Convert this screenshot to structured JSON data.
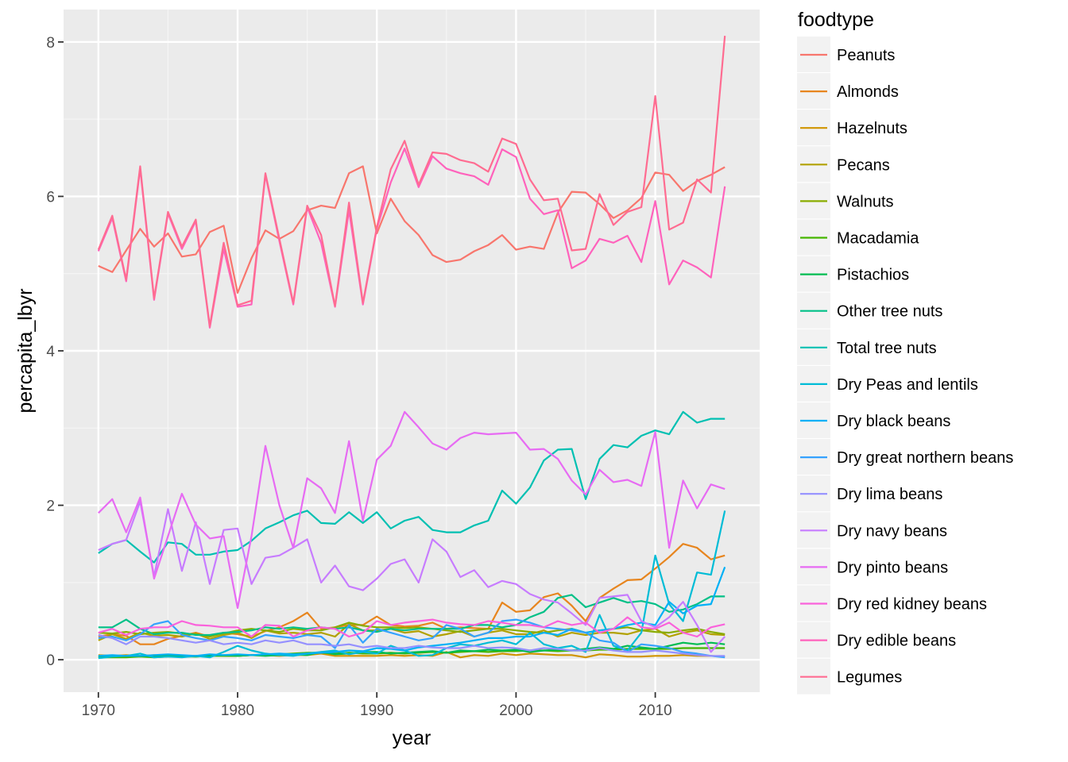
{
  "chart_data": {
    "type": "line",
    "xlabel": "year",
    "ylabel": "percapita_lbyr",
    "xlim": [
      1967.5,
      2017.5
    ],
    "ylim": [
      -0.42,
      8.42
    ],
    "x_ticks": [
      1970,
      1980,
      1990,
      2000,
      2010
    ],
    "y_ticks": [
      0,
      2,
      4,
      6,
      8
    ],
    "grid": true,
    "legend_title": "foodtype",
    "legend_position": "right",
    "x": [
      1970,
      1971,
      1972,
      1973,
      1974,
      1975,
      1976,
      1977,
      1978,
      1979,
      1980,
      1981,
      1982,
      1983,
      1984,
      1985,
      1986,
      1987,
      1988,
      1989,
      1990,
      1991,
      1992,
      1993,
      1994,
      1995,
      1996,
      1997,
      1998,
      1999,
      2000,
      2001,
      2002,
      2003,
      2004,
      2005,
      2006,
      2007,
      2008,
      2009,
      2010,
      2011,
      2012,
      2013,
      2014,
      2015
    ],
    "series": [
      {
        "name": "Peanuts",
        "color": "#F8766D",
        "values": [
          5.1,
          5.02,
          5.3,
          5.58,
          5.35,
          5.52,
          5.22,
          5.25,
          5.54,
          5.62,
          4.75,
          5.2,
          5.56,
          5.45,
          5.55,
          5.82,
          5.88,
          5.85,
          6.3,
          6.39,
          5.52,
          5.97,
          5.68,
          5.5,
          5.24,
          5.15,
          5.18,
          5.29,
          5.37,
          5.5,
          5.31,
          5.35,
          5.32,
          5.79,
          6.06,
          6.05,
          5.9,
          5.72,
          5.82,
          5.98,
          6.31,
          6.28,
          6.07,
          6.2,
          6.28,
          6.38
        ]
      },
      {
        "name": "Almonds",
        "color": "#E7851E",
        "values": [
          0.3,
          0.33,
          0.31,
          0.2,
          0.2,
          0.27,
          0.31,
          0.35,
          0.3,
          0.35,
          0.33,
          0.3,
          0.37,
          0.42,
          0.5,
          0.61,
          0.4,
          0.42,
          0.45,
          0.45,
          0.56,
          0.45,
          0.43,
          0.44,
          0.48,
          0.4,
          0.42,
          0.41,
          0.4,
          0.74,
          0.62,
          0.64,
          0.81,
          0.86,
          0.7,
          0.5,
          0.8,
          0.92,
          1.03,
          1.04,
          1.18,
          1.33,
          1.5,
          1.45,
          1.3,
          1.35
        ]
      },
      {
        "name": "Hazelnuts",
        "color": "#D09400",
        "values": [
          0.06,
          0.05,
          0.06,
          0.05,
          0.06,
          0.05,
          0.05,
          0.05,
          0.06,
          0.05,
          0.05,
          0.06,
          0.06,
          0.05,
          0.06,
          0.06,
          0.08,
          0.05,
          0.05,
          0.05,
          0.05,
          0.06,
          0.05,
          0.06,
          0.05,
          0.1,
          0.03,
          0.06,
          0.05,
          0.08,
          0.06,
          0.08,
          0.07,
          0.06,
          0.06,
          0.03,
          0.07,
          0.06,
          0.04,
          0.04,
          0.05,
          0.05,
          0.06,
          0.05,
          0.05,
          0.04
        ]
      },
      {
        "name": "Pecans",
        "color": "#B2A100",
        "values": [
          0.25,
          0.33,
          0.27,
          0.35,
          0.31,
          0.32,
          0.3,
          0.34,
          0.27,
          0.32,
          0.35,
          0.28,
          0.38,
          0.34,
          0.35,
          0.33,
          0.35,
          0.3,
          0.46,
          0.38,
          0.38,
          0.4,
          0.35,
          0.37,
          0.3,
          0.33,
          0.37,
          0.3,
          0.35,
          0.38,
          0.33,
          0.33,
          0.38,
          0.3,
          0.35,
          0.32,
          0.35,
          0.35,
          0.33,
          0.38,
          0.4,
          0.3,
          0.35,
          0.38,
          0.33,
          0.32
        ]
      },
      {
        "name": "Walnuts",
        "color": "#89AC00",
        "values": [
          0.35,
          0.34,
          0.36,
          0.33,
          0.35,
          0.36,
          0.34,
          0.33,
          0.3,
          0.34,
          0.38,
          0.4,
          0.38,
          0.36,
          0.4,
          0.38,
          0.38,
          0.42,
          0.48,
          0.44,
          0.42,
          0.42,
          0.41,
          0.42,
          0.4,
          0.38,
          0.36,
          0.38,
          0.4,
          0.4,
          0.38,
          0.36,
          0.35,
          0.38,
          0.4,
          0.35,
          0.38,
          0.4,
          0.42,
          0.38,
          0.36,
          0.35,
          0.38,
          0.4,
          0.36,
          0.33
        ]
      },
      {
        "name": "Macadamia",
        "color": "#45B500",
        "values": [
          0.03,
          0.03,
          0.03,
          0.04,
          0.03,
          0.04,
          0.04,
          0.04,
          0.05,
          0.05,
          0.05,
          0.06,
          0.06,
          0.07,
          0.08,
          0.09,
          0.09,
          0.08,
          0.09,
          0.08,
          0.08,
          0.09,
          0.08,
          0.09,
          0.1,
          0.09,
          0.1,
          0.11,
          0.1,
          0.11,
          0.11,
          0.12,
          0.12,
          0.11,
          0.12,
          0.12,
          0.13,
          0.13,
          0.14,
          0.14,
          0.14,
          0.14,
          0.15,
          0.15,
          0.15,
          0.15
        ]
      },
      {
        "name": "Pistachios",
        "color": "#00BC51",
        "values": [
          0.04,
          0.05,
          0.05,
          0.05,
          0.04,
          0.05,
          0.05,
          0.04,
          0.05,
          0.06,
          0.05,
          0.06,
          0.05,
          0.06,
          0.07,
          0.06,
          0.1,
          0.07,
          0.08,
          0.1,
          0.1,
          0.08,
          0.09,
          0.1,
          0.11,
          0.09,
          0.12,
          0.11,
          0.13,
          0.12,
          0.13,
          0.1,
          0.12,
          0.13,
          0.12,
          0.14,
          0.16,
          0.14,
          0.18,
          0.16,
          0.14,
          0.18,
          0.22,
          0.2,
          0.22,
          0.2
        ]
      },
      {
        "name": "Other tree nuts",
        "color": "#00C087",
        "values": [
          0.42,
          0.42,
          0.52,
          0.4,
          0.33,
          0.35,
          0.35,
          0.32,
          0.32,
          0.35,
          0.36,
          0.38,
          0.42,
          0.4,
          0.42,
          0.4,
          0.42,
          0.4,
          0.42,
          0.38,
          0.36,
          0.4,
          0.38,
          0.4,
          0.4,
          0.4,
          0.4,
          0.45,
          0.45,
          0.42,
          0.45,
          0.55,
          0.62,
          0.8,
          0.84,
          0.68,
          0.74,
          0.8,
          0.74,
          0.76,
          0.72,
          0.62,
          0.65,
          0.72,
          0.82,
          0.82
        ]
      },
      {
        "name": "Total tree nuts",
        "color": "#00C0B2",
        "values": [
          1.38,
          1.5,
          1.55,
          1.4,
          1.26,
          1.52,
          1.5,
          1.36,
          1.36,
          1.4,
          1.42,
          1.54,
          1.7,
          1.78,
          1.87,
          1.93,
          1.77,
          1.76,
          1.91,
          1.77,
          1.91,
          1.7,
          1.8,
          1.85,
          1.68,
          1.65,
          1.65,
          1.74,
          1.8,
          2.19,
          2.02,
          2.23,
          2.58,
          2.72,
          2.73,
          2.08,
          2.6,
          2.78,
          2.75,
          2.9,
          2.97,
          2.92,
          3.21,
          3.07,
          3.12,
          3.12
        ]
      },
      {
        "name": "Dry Peas and lentils",
        "color": "#00BCD6",
        "values": [
          0.02,
          0.04,
          0.05,
          0.08,
          0.03,
          0.04,
          0.03,
          0.05,
          0.03,
          0.1,
          0.18,
          0.12,
          0.08,
          0.06,
          0.05,
          0.08,
          0.1,
          0.12,
          0.07,
          0.1,
          0.08,
          0.18,
          0.12,
          0.05,
          0.06,
          0.15,
          0.2,
          0.18,
          0.22,
          0.25,
          0.2,
          0.35,
          0.2,
          0.15,
          0.18,
          0.1,
          0.58,
          0.18,
          0.12,
          0.35,
          1.35,
          0.72,
          0.5,
          1.13,
          1.1,
          1.93
        ]
      },
      {
        "name": "Dry black beans",
        "color": "#00B0F6",
        "values": [
          0.05,
          0.06,
          0.05,
          0.05,
          0.06,
          0.07,
          0.06,
          0.05,
          0.07,
          0.06,
          0.07,
          0.06,
          0.07,
          0.08,
          0.07,
          0.08,
          0.09,
          0.1,
          0.12,
          0.11,
          0.15,
          0.14,
          0.12,
          0.16,
          0.18,
          0.2,
          0.22,
          0.25,
          0.28,
          0.28,
          0.3,
          0.3,
          0.35,
          0.32,
          0.4,
          0.35,
          0.38,
          0.4,
          0.45,
          0.48,
          0.45,
          0.75,
          0.6,
          0.7,
          0.72,
          1.2
        ]
      },
      {
        "name": "Dry great northern beans",
        "color": "#35A2FF",
        "values": [
          0.28,
          0.3,
          0.25,
          0.33,
          0.46,
          0.5,
          0.32,
          0.28,
          0.25,
          0.3,
          0.28,
          0.25,
          0.32,
          0.3,
          0.28,
          0.32,
          0.3,
          0.15,
          0.45,
          0.22,
          0.4,
          0.35,
          0.3,
          0.25,
          0.28,
          0.45,
          0.4,
          0.3,
          0.35,
          0.5,
          0.52,
          0.48,
          0.42,
          0.4,
          0.38,
          0.35,
          0.25,
          0.22,
          0.1,
          0.2,
          0.18,
          0.15,
          0.1,
          0.08,
          0.05,
          0.03
        ]
      },
      {
        "name": "Dry lima beans",
        "color": "#9590FF",
        "values": [
          0.32,
          0.28,
          0.2,
          0.3,
          0.3,
          0.28,
          0.25,
          0.22,
          0.25,
          0.2,
          0.22,
          0.2,
          0.25,
          0.22,
          0.25,
          0.2,
          0.2,
          0.18,
          0.2,
          0.16,
          0.18,
          0.15,
          0.15,
          0.18,
          0.16,
          0.15,
          0.15,
          0.18,
          0.15,
          0.16,
          0.15,
          0.12,
          0.15,
          0.14,
          0.12,
          0.12,
          0.15,
          0.12,
          0.1,
          0.1,
          0.12,
          0.1,
          0.08,
          0.06,
          0.05,
          0.05
        ]
      },
      {
        "name": "Dry navy beans",
        "color": "#C77CFF",
        "values": [
          1.42,
          1.5,
          1.55,
          2.05,
          1.08,
          1.95,
          1.15,
          1.78,
          0.98,
          1.68,
          1.7,
          0.98,
          1.32,
          1.35,
          1.45,
          1.56,
          1.0,
          1.22,
          0.95,
          0.9,
          1.05,
          1.24,
          1.3,
          1.0,
          1.56,
          1.4,
          1.07,
          1.16,
          0.94,
          1.02,
          0.98,
          0.85,
          0.78,
          0.74,
          0.6,
          0.45,
          0.8,
          0.82,
          0.84,
          0.5,
          0.42,
          0.55,
          0.75,
          0.45,
          0.1,
          0.3
        ]
      },
      {
        "name": "Dry pinto beans",
        "color": "#E76BF3",
        "values": [
          1.9,
          2.08,
          1.65,
          2.1,
          1.05,
          1.6,
          2.15,
          1.75,
          1.57,
          1.6,
          0.67,
          1.6,
          2.77,
          2.0,
          1.45,
          2.35,
          2.22,
          1.9,
          2.83,
          1.8,
          2.59,
          2.77,
          3.21,
          3.01,
          2.8,
          2.72,
          2.87,
          2.94,
          2.92,
          2.93,
          2.94,
          2.72,
          2.73,
          2.6,
          2.32,
          2.14,
          2.46,
          2.3,
          2.33,
          2.25,
          2.95,
          1.45,
          2.32,
          1.96,
          2.27,
          2.21
        ]
      },
      {
        "name": "Dry red kidney beans",
        "color": "#FA62DB",
        "values": [
          0.35,
          0.4,
          0.32,
          0.4,
          0.42,
          0.42,
          0.5,
          0.45,
          0.44,
          0.42,
          0.42,
          0.3,
          0.45,
          0.44,
          0.3,
          0.38,
          0.42,
          0.4,
          0.3,
          0.35,
          0.5,
          0.45,
          0.48,
          0.5,
          0.52,
          0.48,
          0.46,
          0.45,
          0.5,
          0.48,
          0.45,
          0.45,
          0.42,
          0.5,
          0.45,
          0.48,
          0.35,
          0.4,
          0.55,
          0.42,
          0.4,
          0.48,
          0.35,
          0.3,
          0.42,
          0.46
        ]
      },
      {
        "name": "Dry edible beans",
        "color": "#FF62BC",
        "values": [
          5.29,
          5.72,
          4.9,
          6.36,
          4.66,
          5.78,
          5.32,
          5.68,
          4.3,
          5.32,
          4.57,
          4.6,
          6.28,
          5.42,
          4.6,
          5.86,
          5.4,
          4.57,
          5.82,
          4.6,
          5.58,
          6.18,
          6.62,
          6.12,
          6.52,
          6.36,
          6.3,
          6.26,
          6.15,
          6.61,
          6.51,
          5.97,
          5.77,
          5.82,
          5.07,
          5.17,
          5.45,
          5.4,
          5.49,
          5.15,
          5.94,
          4.86,
          5.17,
          5.08,
          4.95,
          6.13
        ]
      },
      {
        "name": "Legumes",
        "color": "#FF6C91",
        "values": [
          5.31,
          5.75,
          4.92,
          6.39,
          4.68,
          5.8,
          5.35,
          5.7,
          4.32,
          5.4,
          4.59,
          4.65,
          6.3,
          5.45,
          4.62,
          5.88,
          5.5,
          4.58,
          5.92,
          4.62,
          5.6,
          6.35,
          6.72,
          6.15,
          6.57,
          6.55,
          6.47,
          6.43,
          6.32,
          6.75,
          6.68,
          6.22,
          5.95,
          5.97,
          5.3,
          5.32,
          6.03,
          5.63,
          5.8,
          5.86,
          7.3,
          5.57,
          5.66,
          6.22,
          6.05,
          8.08
        ]
      }
    ]
  }
}
